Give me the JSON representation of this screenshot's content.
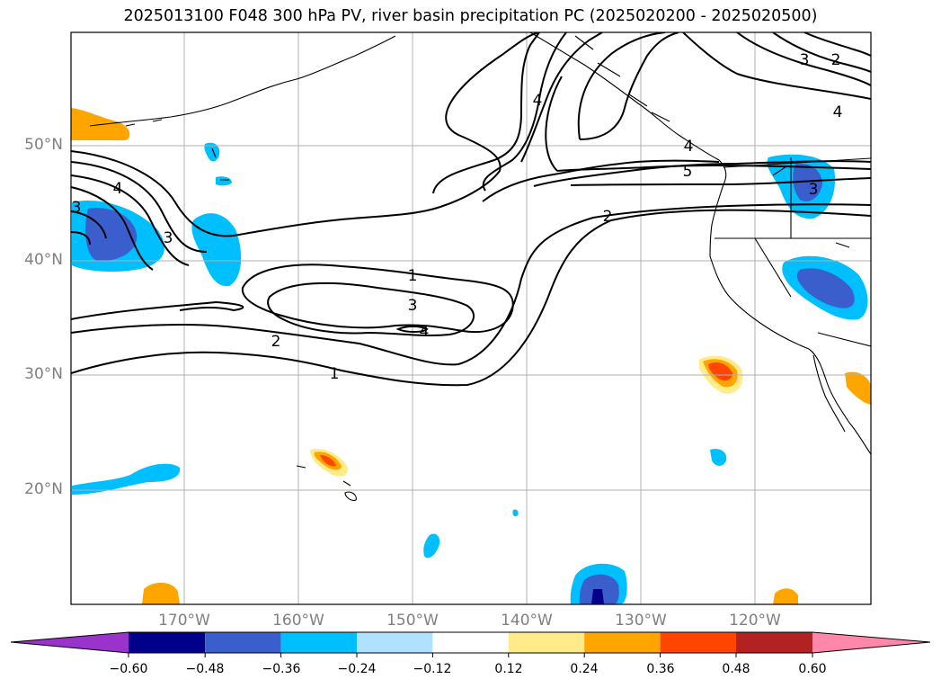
{
  "title": "2025013100 F048 300 hPa PV, river basin precipitation PC (2025020200 - 2025020500)",
  "lat_labels": [
    "50°N",
    "40°N",
    "30°N",
    "20°N"
  ],
  "lon_labels": [
    "170°W",
    "160°W",
    "150°W",
    "140°W",
    "130°W",
    "120°W"
  ],
  "contour_labels": [
    "1",
    "1",
    "2",
    "2",
    "3",
    "3",
    "3",
    "3",
    "4",
    "4",
    "4",
    "4",
    "5",
    "2",
    "3",
    "4"
  ],
  "colorbar": {
    "ticks": [
      "−0.60",
      "−0.48",
      "−0.36",
      "−0.24",
      "−0.12",
      "0.12",
      "0.24",
      "0.36",
      "0.48",
      "0.60"
    ],
    "colors": [
      "#9933cc",
      "#00008b",
      "#3a5fcd",
      "#00bfff",
      "#b0e2ff",
      "#ffffff",
      "#ffeb8a",
      "#ffa500",
      "#ff4500",
      "#b22222",
      "#ff88aa"
    ]
  }
}
